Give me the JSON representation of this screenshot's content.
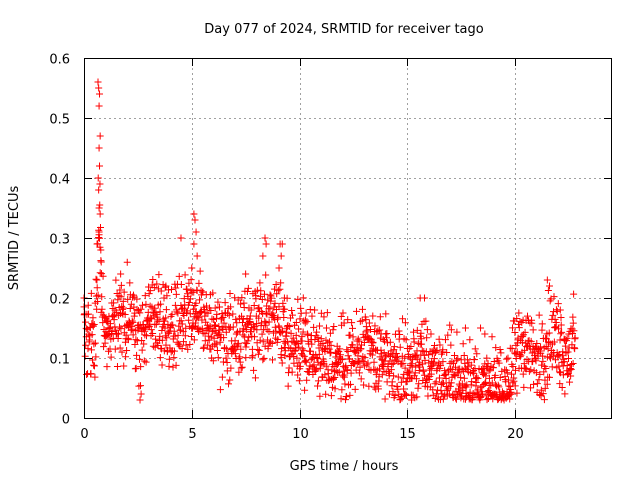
{
  "chart_data": {
    "type": "scatter",
    "title": "Day 077 of 2024, SRMTID for receiver tago",
    "xlabel": "GPS time / hours",
    "ylabel": "SRMTID / TECUs",
    "xlim": [
      0,
      24.5
    ],
    "ylim": [
      0,
      0.6
    ],
    "x_ticks": [
      0,
      5,
      10,
      15,
      20
    ],
    "x_tick_labels": [
      "0",
      "5",
      "10",
      "15",
      "20"
    ],
    "y_ticks": [
      0,
      0.1,
      0.2,
      0.3,
      0.4,
      0.5,
      0.6
    ],
    "y_tick_labels": [
      "0",
      "0.1",
      "0.2",
      "0.3",
      "0.4",
      "0.5",
      "0.6"
    ],
    "grid": true,
    "marker": "+",
    "marker_color": "#ff0000",
    "trend": [
      [
        0.0,
        0.14
      ],
      [
        0.2,
        0.13
      ],
      [
        0.4,
        0.12
      ],
      [
        0.55,
        0.17
      ],
      [
        0.7,
        0.32
      ],
      [
        0.8,
        0.2
      ],
      [
        1.0,
        0.15
      ],
      [
        1.5,
        0.16
      ],
      [
        2.0,
        0.17
      ],
      [
        2.5,
        0.14
      ],
      [
        3.0,
        0.15
      ],
      [
        3.5,
        0.16
      ],
      [
        4.0,
        0.15
      ],
      [
        4.5,
        0.17
      ],
      [
        5.0,
        0.19
      ],
      [
        5.5,
        0.17
      ],
      [
        6.0,
        0.14
      ],
      [
        6.5,
        0.13
      ],
      [
        7.0,
        0.13
      ],
      [
        7.5,
        0.14
      ],
      [
        8.0,
        0.15
      ],
      [
        8.5,
        0.16
      ],
      [
        9.0,
        0.17
      ],
      [
        9.5,
        0.13
      ],
      [
        10.0,
        0.13
      ],
      [
        10.5,
        0.12
      ],
      [
        11.0,
        0.1
      ],
      [
        11.5,
        0.09
      ],
      [
        12.0,
        0.09
      ],
      [
        12.5,
        0.1
      ],
      [
        13.0,
        0.11
      ],
      [
        13.5,
        0.1
      ],
      [
        14.0,
        0.1
      ],
      [
        14.5,
        0.08
      ],
      [
        15.0,
        0.08
      ],
      [
        15.5,
        0.1
      ],
      [
        16.0,
        0.09
      ],
      [
        16.5,
        0.08
      ],
      [
        17.0,
        0.07
      ],
      [
        17.5,
        0.06
      ],
      [
        18.0,
        0.06
      ],
      [
        18.5,
        0.05
      ],
      [
        19.0,
        0.05
      ],
      [
        19.5,
        0.05
      ],
      [
        20.0,
        0.09
      ],
      [
        20.3,
        0.13
      ],
      [
        20.6,
        0.12
      ],
      [
        21.0,
        0.09
      ],
      [
        21.3,
        0.1
      ],
      [
        21.6,
        0.14
      ],
      [
        22.0,
        0.13
      ],
      [
        22.4,
        0.11
      ],
      [
        22.8,
        0.12
      ]
    ],
    "spikes": [
      [
        0.65,
        0.56
      ],
      [
        0.68,
        0.55
      ],
      [
        0.72,
        0.54
      ],
      [
        0.7,
        0.52
      ],
      [
        0.75,
        0.47
      ],
      [
        0.7,
        0.45
      ],
      [
        0.72,
        0.42
      ],
      [
        0.66,
        0.4
      ],
      [
        0.74,
        0.39
      ],
      [
        0.68,
        0.38
      ],
      [
        0.7,
        0.35
      ],
      [
        0.75,
        0.34
      ],
      [
        0.7,
        0.31
      ],
      [
        0.78,
        0.28
      ],
      [
        0.8,
        0.26
      ],
      [
        4.5,
        0.3
      ],
      [
        5.1,
        0.34
      ],
      [
        5.15,
        0.33
      ],
      [
        5.2,
        0.31
      ],
      [
        5.1,
        0.29
      ],
      [
        5.25,
        0.27
      ],
      [
        5.0,
        0.25
      ],
      [
        8.4,
        0.3
      ],
      [
        8.45,
        0.29
      ],
      [
        9.1,
        0.29
      ],
      [
        9.2,
        0.29
      ],
      [
        9.15,
        0.27
      ],
      [
        9.05,
        0.25
      ],
      [
        8.3,
        0.27
      ],
      [
        7.5,
        0.24
      ],
      [
        1.7,
        0.24
      ],
      [
        3.8,
        0.22
      ],
      [
        15.6,
        0.2
      ],
      [
        15.8,
        0.2
      ],
      [
        21.5,
        0.23
      ],
      [
        21.6,
        0.22
      ],
      [
        22.1,
        0.18
      ],
      [
        0.0,
        0.2
      ],
      [
        10.7,
        0.18
      ],
      [
        17.7,
        0.15
      ],
      [
        18.4,
        0.15
      ],
      [
        18.6,
        0.14
      ],
      [
        0.6,
        0.23
      ],
      [
        9.3,
        0.2
      ],
      [
        13.4,
        0.17
      ],
      [
        2.6,
        0.03
      ],
      [
        2.65,
        0.04
      ],
      [
        14.0,
        0.14
      ],
      [
        15.2,
        0.03
      ],
      [
        16.1,
        0.14
      ]
    ],
    "scatter_amplitude": 0.035,
    "sampling_interval_hours": 0.014
  }
}
